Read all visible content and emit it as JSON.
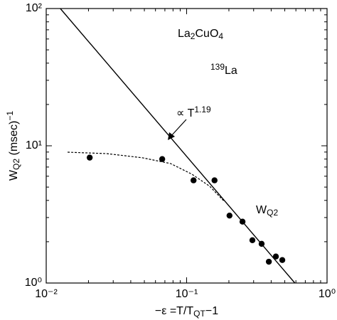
{
  "chart_data": {
    "type": "scatter",
    "x_label": [
      "−ε =T/T",
      "QT",
      "−1"
    ],
    "y_label": [
      "W",
      "Q2",
      " (msec)",
      "−1"
    ],
    "xlim": [
      0.01,
      1
    ],
    "ylim": [
      1,
      100
    ],
    "xticks": [
      {
        "value": 0.01,
        "label": "10⁻²"
      },
      {
        "value": 0.1,
        "label": "10⁻¹"
      },
      {
        "value": 1,
        "label": "10⁰"
      }
    ],
    "yticks": [
      {
        "value": 1,
        "label": "10⁰"
      },
      {
        "value": 10,
        "label": "10¹"
      },
      {
        "value": 100,
        "label": "10²"
      }
    ],
    "log_x": true,
    "log_y": true,
    "series": [
      {
        "type": "scatter",
        "color": "#000000",
        "x": [
          0.0204,
          0.067,
          0.112,
          0.158,
          0.202,
          0.25,
          0.294,
          0.342,
          0.385,
          0.432,
          0.48
        ],
        "values": [
          8.2,
          8.0,
          5.6,
          5.6,
          3.1,
          2.8,
          2.05,
          1.93,
          1.43,
          1.56,
          1.47
        ]
      },
      {
        "type": "line",
        "color": "#000000",
        "dashed": false,
        "x": [
          0.0126,
          0.59
        ],
        "values": [
          100,
          1
        ]
      },
      {
        "type": "line",
        "color": "#000000",
        "dashed": true,
        "x": [
          0.0142,
          0.0269,
          0.0483,
          0.0769,
          0.109,
          0.146,
          0.185
        ],
        "values": [
          8.98,
          8.77,
          8.18,
          7.42,
          6.21,
          5.07,
          3.94
        ]
      }
    ],
    "annotations": [
      {
        "text": [
          "La",
          "2",
          "CuO",
          "4"
        ]
      },
      {
        "text": [
          "139",
          "La"
        ]
      },
      {
        "text": [
          "∝ T",
          "1.19"
        ]
      },
      {
        "text": [
          "W",
          "Q2"
        ]
      }
    ]
  }
}
